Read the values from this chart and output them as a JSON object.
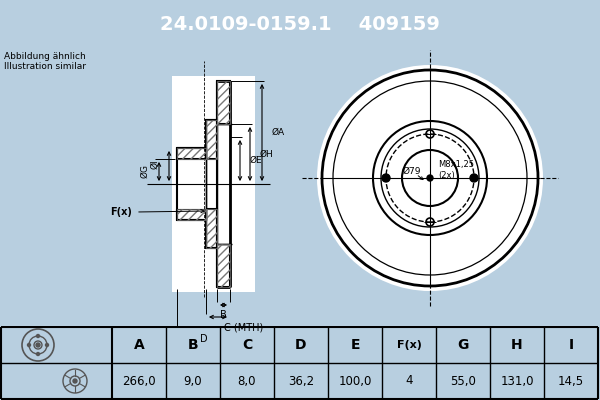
{
  "title_part": "24.0109-0159.1",
  "title_num": "409159",
  "title_bg": "#1a5fa8",
  "title_fg": "#FFFFFF",
  "subtitle1": "Abbildung ähnlich",
  "subtitle2": "Illustration similar",
  "bg_color": "#b8cfe0",
  "main_bg": "#ffffff",
  "table_headers": [
    "A",
    "B",
    "C",
    "D",
    "E",
    "F(x)",
    "G",
    "H",
    "I"
  ],
  "table_values": [
    "266,0",
    "9,0",
    "8,0",
    "36,2",
    "100,0",
    "4",
    "55,0",
    "131,0",
    "14,5"
  ],
  "bolt_label": "Ø79",
  "thread_label": "M8x1,25\n(2x)",
  "line_color": "#000000",
  "hatch_color": "#777777"
}
